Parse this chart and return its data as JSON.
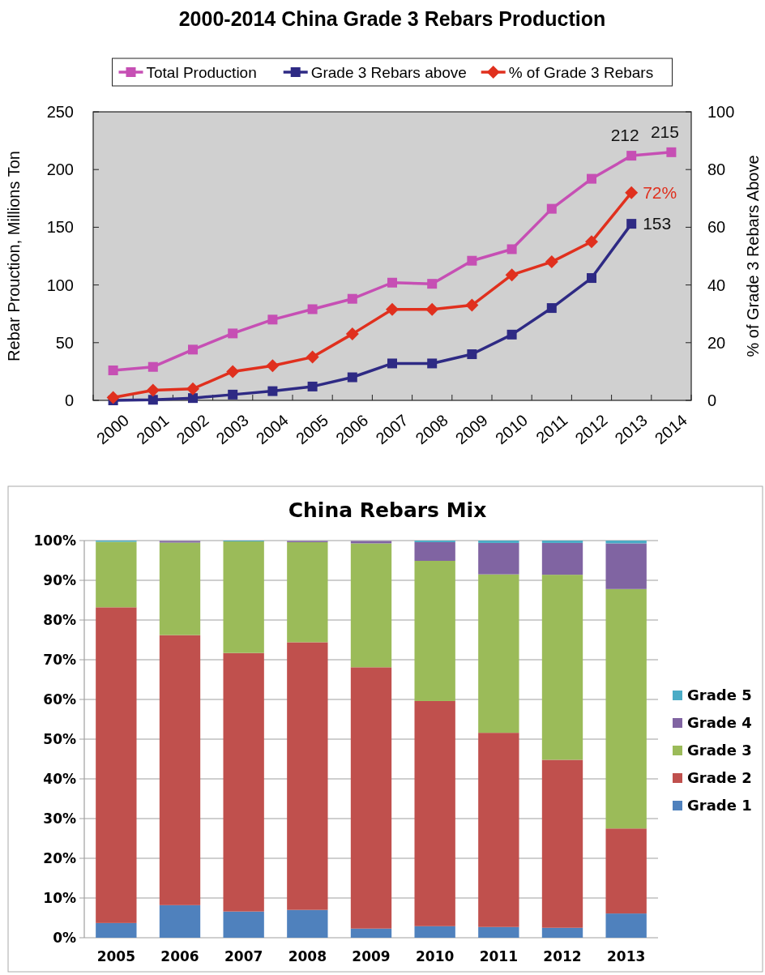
{
  "chart_data": [
    {
      "type": "line",
      "title": "2000-2014 China Grade 3 Rebars Production",
      "ylabel": "Rebar Prouction, Millions Ton",
      "y2label": "% of Grade 3 Rebars Above",
      "categories": [
        "2000",
        "2001",
        "2002",
        "2003",
        "2004",
        "2005",
        "2006",
        "2007",
        "2008",
        "2009",
        "2010",
        "2011",
        "2012",
        "2013",
        "2014"
      ],
      "ylim": [
        0,
        250
      ],
      "yticks": [
        0,
        50,
        100,
        150,
        200,
        250
      ],
      "y2lim": [
        0,
        100
      ],
      "y2ticks": [
        0,
        20,
        40,
        60,
        80,
        100
      ],
      "legend": "top",
      "grid": false,
      "series": [
        {
          "name": "Total Production",
          "color": "#c64fb4",
          "marker": "square",
          "values": [
            26,
            29,
            44,
            58,
            70,
            79,
            88,
            102,
            101,
            121,
            131,
            166,
            192,
            212,
            215
          ],
          "value_labels": [
            null,
            null,
            null,
            null,
            null,
            null,
            null,
            null,
            null,
            null,
            null,
            null,
            null,
            "212",
            "215"
          ]
        },
        {
          "name": "Grade 3 Rebars above",
          "color": "#2e2a84",
          "marker": "square",
          "values": [
            0,
            0.5,
            2,
            5,
            8,
            12,
            20,
            32,
            32,
            40,
            57,
            80,
            106,
            153,
            null
          ],
          "value_labels": [
            null,
            null,
            null,
            null,
            null,
            null,
            null,
            null,
            null,
            null,
            null,
            null,
            null,
            "153",
            null
          ]
        },
        {
          "name": "% of Grade 3 Rebars",
          "color": "#e0301e",
          "marker": "diamond",
          "axis": "y2",
          "values": [
            1,
            3.5,
            4,
            10,
            12,
            15,
            23,
            31.5,
            31.5,
            33,
            43.5,
            48,
            55,
            72,
            null
          ],
          "value_labels": [
            null,
            null,
            null,
            null,
            null,
            null,
            null,
            null,
            null,
            null,
            null,
            null,
            null,
            "72%",
            null
          ]
        }
      ]
    },
    {
      "type": "bar",
      "stacked": true,
      "title": "China Rebars Mix",
      "categories": [
        "2005",
        "2006",
        "2007",
        "2008",
        "2009",
        "2010",
        "2011",
        "2012",
        "2013"
      ],
      "ylim": [
        0,
        100
      ],
      "yticks": [
        {
          "value": 0,
          "label": "0%"
        },
        {
          "value": 10,
          "label": "10%"
        },
        {
          "value": 20,
          "label": "20%"
        },
        {
          "value": 30,
          "label": "30%"
        },
        {
          "value": 40,
          "label": "40%"
        },
        {
          "value": 50,
          "label": "50%"
        },
        {
          "value": 60,
          "label": "60%"
        },
        {
          "value": 70,
          "label": "70%"
        },
        {
          "value": 80,
          "label": "80%"
        },
        {
          "value": 90,
          "label": "90%"
        },
        {
          "value": 100,
          "label": "100%"
        }
      ],
      "grid": "y",
      "legend": "right",
      "series": [
        {
          "name": "Grade 1",
          "color": "#4f81bd",
          "values": [
            3.7,
            8.2,
            6.6,
            7.0,
            2.3,
            2.9,
            2.7,
            2.5,
            6.1
          ]
        },
        {
          "name": "Grade 2",
          "color": "#c0504d",
          "values": [
            79.5,
            68.0,
            65.1,
            67.4,
            65.8,
            56.7,
            48.9,
            42.3,
            21.4
          ]
        },
        {
          "name": "Grade 3",
          "color": "#9bbb59",
          "values": [
            16.5,
            23.3,
            28.1,
            25.2,
            31.2,
            35.3,
            39.9,
            46.6,
            60.3
          ]
        },
        {
          "name": "Grade 4",
          "color": "#8064a2",
          "values": [
            0,
            0.4,
            0,
            0.3,
            0.6,
            4.7,
            7.9,
            8.0,
            11.5
          ]
        },
        {
          "name": "Grade 5",
          "color": "#4bacc6",
          "values": [
            0.3,
            null,
            0.2,
            null,
            null,
            0.4,
            0.6,
            0.6,
            0.7
          ]
        }
      ]
    }
  ]
}
